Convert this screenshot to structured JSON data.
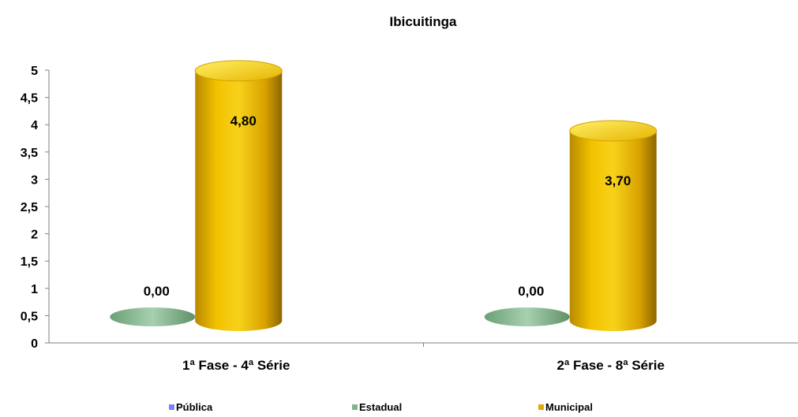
{
  "chart_data": {
    "type": "bar",
    "title": "Ibicuitinga",
    "categories": [
      "1ª Fase - 4ª Série",
      "2ª Fase - 8ª Série"
    ],
    "series": [
      {
        "name": "Pública",
        "values": [
          null,
          null
        ],
        "labels": [
          "",
          ""
        ],
        "color": "#8080ff"
      },
      {
        "name": "Estadual",
        "values": [
          0,
          0
        ],
        "labels": [
          "0,00",
          "0,00"
        ],
        "color": "#7fb58a"
      },
      {
        "name": "Municipal",
        "values": [
          4.8,
          3.7
        ],
        "labels": [
          "4,80",
          "3,70"
        ],
        "color": "#e0a800"
      }
    ],
    "yticks": [
      "0",
      "0,5",
      "1",
      "1,5",
      "2",
      "2,5",
      "3",
      "3,5",
      "4",
      "4,5",
      "5"
    ],
    "ylim": [
      0,
      5
    ],
    "xlabel": "",
    "ylabel": "",
    "legend_position": "bottom",
    "grid": false
  }
}
